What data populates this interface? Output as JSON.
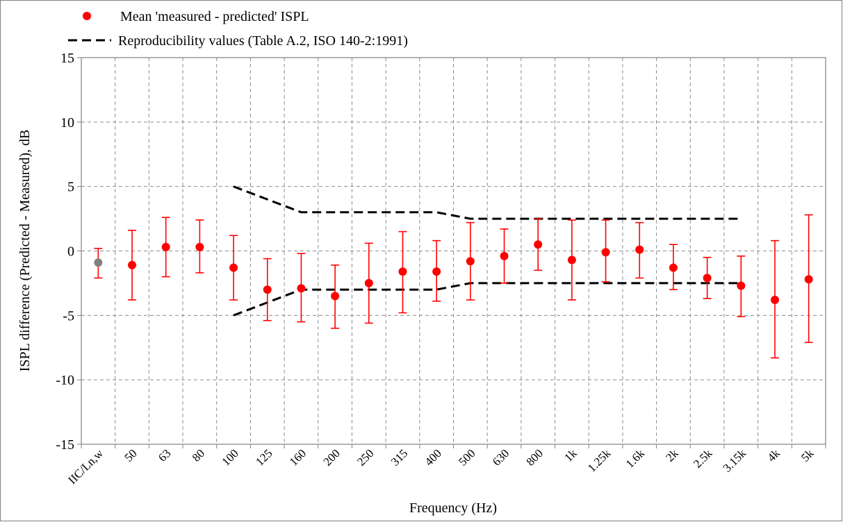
{
  "chart_data": {
    "type": "scatter",
    "xlabel": "Frequency (Hz)",
    "ylabel": "ISPL difference (Predicted - Measured), dB",
    "ylim": [
      -15,
      15
    ],
    "y_ticks": [
      15,
      10,
      5,
      0,
      -5,
      -10,
      -15
    ],
    "grid": true,
    "legend_position": "top-left",
    "categories": [
      "IIC/Ln,w",
      "50",
      "63",
      "80",
      "100",
      "125",
      "160",
      "200",
      "250",
      "315",
      "400",
      "500",
      "630",
      "800",
      "1k",
      "1.25k",
      "1.6k",
      "2k",
      "2.5k",
      "3.15k",
      "4k",
      "5k"
    ],
    "series": [
      {
        "name": "Mean 'measured - predicted' ISPL",
        "color": "#ff0000",
        "single_number_color": "#808080",
        "values": [
          -0.9,
          -1.1,
          0.3,
          0.3,
          -1.3,
          -3.0,
          -2.9,
          -3.5,
          -2.5,
          -1.6,
          -1.6,
          -0.8,
          -0.4,
          0.5,
          -0.7,
          -0.1,
          0.1,
          -1.3,
          -2.1,
          -2.7,
          -3.8,
          -2.2
        ],
        "error_low": [
          -2.1,
          -3.8,
          -2.0,
          -1.7,
          -3.8,
          -5.4,
          -5.5,
          -6.0,
          -5.6,
          -4.8,
          -3.9,
          -3.8,
          -2.5,
          -1.5,
          -3.8,
          -2.4,
          -2.1,
          -3.0,
          -3.7,
          -5.1,
          -8.3,
          -7.1
        ],
        "error_high": [
          0.2,
          1.6,
          2.6,
          2.4,
          1.2,
          -0.6,
          -0.2,
          -1.1,
          0.6,
          1.5,
          0.8,
          2.2,
          1.7,
          2.5,
          2.4,
          2.4,
          2.2,
          0.5,
          -0.5,
          -0.4,
          0.8,
          2.8
        ]
      },
      {
        "name": "Reproducibility values (Table A.2, ISO 140-2:1991)",
        "color": "#000000",
        "style": "dashed",
        "upper": {
          "x": [
            "100",
            "160",
            "400",
            "500",
            "3.15k"
          ],
          "y": [
            5.0,
            3.0,
            3.0,
            2.5,
            2.5
          ]
        },
        "lower": {
          "x": [
            "100",
            "160",
            "400",
            "500",
            "3.15k"
          ],
          "y": [
            -5.0,
            -3.0,
            -3.0,
            -2.5,
            -2.5
          ]
        }
      }
    ]
  }
}
